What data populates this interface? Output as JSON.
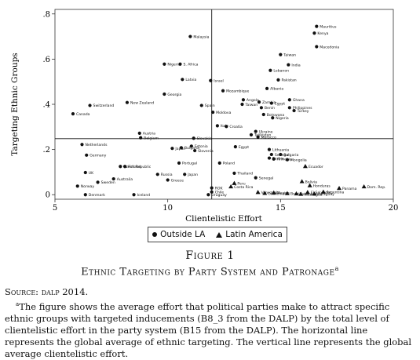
{
  "chart_data": {
    "type": "scatter",
    "xlabel": "Clientelistic Effort",
    "ylabel": "Targeting Ethnic Groups",
    "xlim": [
      5,
      20
    ],
    "ylim": [
      -0.02,
      0.82
    ],
    "xticks": [
      "5",
      "10",
      "15",
      "20"
    ],
    "yticks": [
      "0",
      ".2",
      ".4",
      ".6",
      ".8"
    ],
    "xtick_values": [
      5,
      10,
      15,
      20
    ],
    "ytick_values": [
      0,
      0.2,
      0.4,
      0.6,
      0.8
    ],
    "hline": 0.248,
    "vline": 11.95,
    "grid": false,
    "legend_position": "bottom-center",
    "series": [
      {
        "name": "Outside LA",
        "marker": "circle",
        "points": [
          {
            "label": "Mauritius",
            "x": 16.6,
            "y": 0.745
          },
          {
            "label": "Kenya",
            "x": 16.5,
            "y": 0.715
          },
          {
            "label": "Macedonia",
            "x": 16.6,
            "y": 0.655
          },
          {
            "label": "Malaysia",
            "x": 11.0,
            "y": 0.7
          },
          {
            "label": "Taiwan",
            "x": 15.0,
            "y": 0.62
          },
          {
            "label": "India",
            "x": 15.35,
            "y": 0.575
          },
          {
            "label": "Lebanon",
            "x": 14.55,
            "y": 0.55
          },
          {
            "label": "Nigeria",
            "x": 9.85,
            "y": 0.578
          },
          {
            "label": "S. Africa",
            "x": 10.55,
            "y": 0.578
          },
          {
            "label": "Latvia",
            "x": 10.65,
            "y": 0.51
          },
          {
            "label": "Israel",
            "x": 11.9,
            "y": 0.505
          },
          {
            "label": "Pakistan",
            "x": 14.9,
            "y": 0.508
          },
          {
            "label": "Albania",
            "x": 14.4,
            "y": 0.47
          },
          {
            "label": "Mozambique",
            "x": 12.45,
            "y": 0.46
          },
          {
            "label": "Georgia",
            "x": 9.85,
            "y": 0.445
          },
          {
            "label": "Angola",
            "x": 13.35,
            "y": 0.42
          },
          {
            "label": "Zambia",
            "x": 14.05,
            "y": 0.41
          },
          {
            "label": "Egypt",
            "x": 14.6,
            "y": 0.405
          },
          {
            "label": "Ghana",
            "x": 15.4,
            "y": 0.42
          },
          {
            "label": "Taiwan",
            "x": 13.3,
            "y": 0.4
          },
          {
            "label": "Benin",
            "x": 14.15,
            "y": 0.385
          },
          {
            "label": "Philippines",
            "x": 15.4,
            "y": 0.385
          },
          {
            "label": "Turkey",
            "x": 15.6,
            "y": 0.372
          },
          {
            "label": "Botswana",
            "x": 14.25,
            "y": 0.355
          },
          {
            "label": "Nigeria",
            "x": 14.65,
            "y": 0.34
          },
          {
            "label": "Switzerland",
            "x": 6.55,
            "y": 0.395
          },
          {
            "label": "New Zealand",
            "x": 8.2,
            "y": 0.408
          },
          {
            "label": "Spain",
            "x": 11.5,
            "y": 0.395
          },
          {
            "label": "Moldova",
            "x": 12.0,
            "y": 0.365
          },
          {
            "label": "Canada",
            "x": 5.8,
            "y": 0.358
          },
          {
            "label": "Italy",
            "x": 12.2,
            "y": 0.305
          },
          {
            "label": "Croatia",
            "x": 12.6,
            "y": 0.302
          },
          {
            "label": "Ukraine",
            "x": 13.9,
            "y": 0.28
          },
          {
            "label": "Tajikistan",
            "x": 13.7,
            "y": 0.265
          },
          {
            "label": "Morocco",
            "x": 14.0,
            "y": 0.255
          },
          {
            "label": "Austria",
            "x": 8.75,
            "y": 0.272
          },
          {
            "label": "Belgium",
            "x": 8.8,
            "y": 0.252
          },
          {
            "label": "Slovakia",
            "x": 11.15,
            "y": 0.25
          },
          {
            "label": "Netherlands",
            "x": 6.2,
            "y": 0.222
          },
          {
            "label": "Estonia",
            "x": 11.05,
            "y": 0.215
          },
          {
            "label": "Bulgaria",
            "x": 10.6,
            "y": 0.208
          },
          {
            "label": "Slovenia",
            "x": 11.2,
            "y": 0.195
          },
          {
            "label": "Japan",
            "x": 10.2,
            "y": 0.205
          },
          {
            "label": "Egypt",
            "x": 13.0,
            "y": 0.212
          },
          {
            "label": "Lithuania",
            "x": 14.5,
            "y": 0.2
          },
          {
            "label": "Senegal",
            "x": 14.6,
            "y": 0.178
          },
          {
            "label": "Bulgaria",
            "x": 15.0,
            "y": 0.178
          },
          {
            "label": "Serbia",
            "x": 14.5,
            "y": 0.162
          },
          {
            "label": "Armenia",
            "x": 14.7,
            "y": 0.158
          },
          {
            "label": "Mongolia",
            "x": 15.3,
            "y": 0.155
          },
          {
            "label": "Germany",
            "x": 6.4,
            "y": 0.175
          },
          {
            "label": "Portugal",
            "x": 10.5,
            "y": 0.14
          },
          {
            "label": "Poland",
            "x": 12.3,
            "y": 0.14
          },
          {
            "label": "Czech Republic",
            "x": 7.9,
            "y": 0.125
          },
          {
            "label": "Finland",
            "x": 8.1,
            "y": 0.125
          },
          {
            "label": "UK",
            "x": 6.35,
            "y": 0.098
          },
          {
            "label": "Russia",
            "x": 9.55,
            "y": 0.09
          },
          {
            "label": "Japan",
            "x": 10.75,
            "y": 0.09
          },
          {
            "label": "Thailand",
            "x": 12.95,
            "y": 0.095
          },
          {
            "label": "Senegal",
            "x": 13.9,
            "y": 0.075
          },
          {
            "label": "Australia",
            "x": 7.6,
            "y": 0.07
          },
          {
            "label": "Greece",
            "x": 10.0,
            "y": 0.065
          },
          {
            "label": "Sweden",
            "x": 6.9,
            "y": 0.055
          },
          {
            "label": "Norway",
            "x": 6.0,
            "y": 0.038
          },
          {
            "label": "ROK",
            "x": 11.95,
            "y": 0.03
          },
          {
            "label": "Chile",
            "x": 11.95,
            "y": 0.012
          },
          {
            "label": "Denmark",
            "x": 6.35,
            "y": 0.0
          },
          {
            "label": "Iceland",
            "x": 8.5,
            "y": 0.0
          },
          {
            "label": "Uruguay",
            "x": 11.8,
            "y": 0.0
          }
        ]
      },
      {
        "name": "Latin America",
        "marker": "triangle",
        "points": [
          {
            "label": "Ecuador",
            "x": 16.1,
            "y": 0.125
          },
          {
            "label": "Bolivia",
            "x": 15.95,
            "y": 0.058
          },
          {
            "label": "Peru",
            "x": 12.95,
            "y": 0.05
          },
          {
            "label": "Costa Rica",
            "x": 12.8,
            "y": 0.035
          },
          {
            "label": "Honduras",
            "x": 16.3,
            "y": 0.04
          },
          {
            "label": "Dom. Rep.",
            "x": 18.7,
            "y": 0.035
          },
          {
            "label": "Panama",
            "x": 17.6,
            "y": 0.028
          },
          {
            "label": "Argentina",
            "x": 16.9,
            "y": 0.012
          },
          {
            "label": "El Salvador",
            "x": 16.2,
            "y": 0.01
          },
          {
            "label": "Venezuela",
            "x": 14.0,
            "y": 0.01
          },
          {
            "label": "Guatemala",
            "x": 14.3,
            "y": 0.006
          },
          {
            "label": "Mexico",
            "x": 14.7,
            "y": 0.008
          },
          {
            "label": "Brazil",
            "x": 15.3,
            "y": 0.005
          },
          {
            "label": "Colombia",
            "x": 15.7,
            "y": 0.004
          },
          {
            "label": "Paraguay",
            "x": 16.5,
            "y": 0.003
          },
          {
            "label": "Nicaragua",
            "x": 15.9,
            "y": 0.002
          }
        ]
      }
    ]
  },
  "legend": {
    "outside_la": "Outside LA",
    "latin_america": "Latin America"
  },
  "figure": {
    "label": "Figure 1",
    "title": "Ethnic Targeting by Party System and Patronage",
    "title_note": "a"
  },
  "source": {
    "prefix": "Source:",
    "text": "dalp 2014."
  },
  "note": {
    "marker": "a",
    "text": "The figure shows the average effort that political parties make to attract specific ethnic groups with targeted inducements (B8_3 from the DALP) by the total level of clientelistic effort in the party system (B15 from the DALP). The horizontal line represents the global average of ethnic targeting. The vertical line represents the global average clientelistic effort."
  }
}
